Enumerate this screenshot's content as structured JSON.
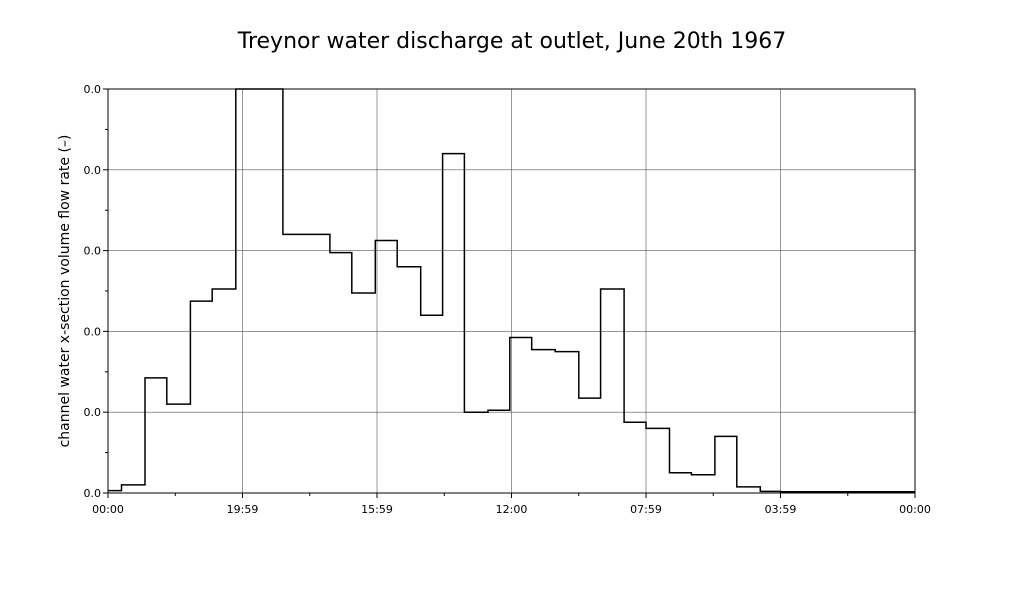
{
  "chart_data": {
    "type": "line",
    "title": "Treynor water discharge at outlet, June 20th 1967",
    "ylabel": "channel water x-section  volume flow rate (–)",
    "xlabel": "",
    "x_tick_labels": [
      "00:00",
      "19:59",
      "15:59",
      "12:00",
      "07:59",
      "03:59",
      "00:00"
    ],
    "y_tick_labels": [
      "0.0",
      "0.0",
      "0.0",
      "0.0",
      "0.0",
      "0.0"
    ],
    "xlim": [
      0,
      24
    ],
    "ylim": [
      0,
      1.0
    ],
    "grid": true,
    "step": true,
    "series": [
      {
        "points": [
          [
            0.0,
            0.006
          ],
          [
            0.4,
            0.006
          ],
          [
            0.4,
            0.02
          ],
          [
            1.1,
            0.02
          ],
          [
            1.1,
            0.285
          ],
          [
            1.75,
            0.285
          ],
          [
            1.75,
            0.22
          ],
          [
            2.45,
            0.22
          ],
          [
            2.45,
            0.475
          ],
          [
            3.1,
            0.475
          ],
          [
            3.1,
            0.505
          ],
          [
            3.8,
            0.505
          ],
          [
            3.8,
            1.0
          ],
          [
            5.2,
            1.0
          ],
          [
            5.2,
            0.64
          ],
          [
            6.6,
            0.64
          ],
          [
            6.6,
            0.595
          ],
          [
            7.25,
            0.595
          ],
          [
            7.25,
            0.495
          ],
          [
            7.95,
            0.495
          ],
          [
            7.95,
            0.625
          ],
          [
            8.6,
            0.625
          ],
          [
            8.6,
            0.56
          ],
          [
            9.3,
            0.56
          ],
          [
            9.3,
            0.44
          ],
          [
            9.95,
            0.44
          ],
          [
            9.95,
            0.84
          ],
          [
            10.6,
            0.84
          ],
          [
            10.6,
            0.2
          ],
          [
            11.3,
            0.2
          ],
          [
            11.3,
            0.205
          ],
          [
            11.95,
            0.205
          ],
          [
            11.95,
            0.385
          ],
          [
            12.6,
            0.385
          ],
          [
            12.6,
            0.355
          ],
          [
            13.3,
            0.355
          ],
          [
            13.3,
            0.35
          ],
          [
            14.0,
            0.35
          ],
          [
            14.0,
            0.235
          ],
          [
            14.65,
            0.235
          ],
          [
            14.65,
            0.505
          ],
          [
            15.35,
            0.505
          ],
          [
            15.35,
            0.175
          ],
          [
            16.0,
            0.175
          ],
          [
            16.0,
            0.16
          ],
          [
            16.7,
            0.16
          ],
          [
            16.7,
            0.05
          ],
          [
            17.35,
            0.05
          ],
          [
            17.35,
            0.045
          ],
          [
            18.05,
            0.045
          ],
          [
            18.05,
            0.14
          ],
          [
            18.7,
            0.14
          ],
          [
            18.7,
            0.015
          ],
          [
            19.4,
            0.015
          ],
          [
            19.4,
            0.004
          ],
          [
            20.0,
            0.004
          ],
          [
            20.0,
            0.003
          ],
          [
            24.0,
            0.003
          ]
        ]
      }
    ]
  }
}
